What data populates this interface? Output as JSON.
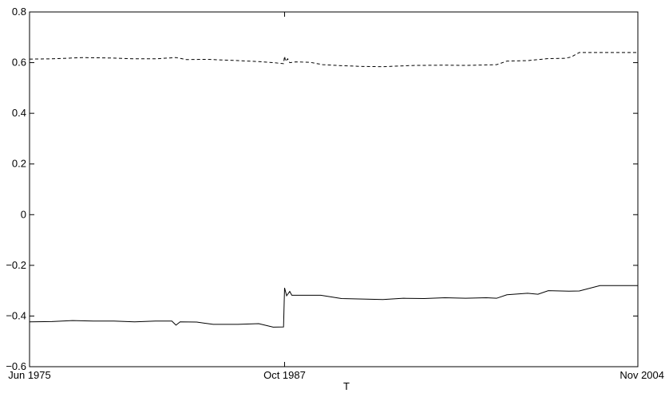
{
  "chart_data": {
    "type": "line",
    "title": "",
    "xlabel": "T",
    "ylabel": "",
    "ylim": [
      -0.6,
      0.8
    ],
    "yticks": [
      -0.6,
      -0.4,
      -0.2,
      0,
      0.2,
      0.4,
      0.6,
      0.8
    ],
    "ytick_labels": [
      "−0.6",
      "−0.4",
      "−0.2",
      "0",
      "0.2",
      "0.4",
      "0.6",
      "0.8"
    ],
    "xlim": [
      1975.42,
      2004.83
    ],
    "xticks": [
      1975.42,
      1987.75,
      2004.83
    ],
    "xtick_labels": [
      "Jun 1975",
      "Oct 1987",
      "Nov 2004"
    ],
    "grid": false,
    "series": [
      {
        "style": "dashed",
        "color": "#000000",
        "x": [
          1975.42,
          1976.5,
          1978,
          1979.5,
          1980.5,
          1981.5,
          1982.5,
          1983,
          1984,
          1985.5,
          1986.5,
          1987.2,
          1987.7,
          1987.75,
          1987.8,
          1987.9,
          1988.0,
          1988.3,
          1989,
          1989.6,
          1990.5,
          1991.5,
          1992.5,
          1994,
          1995.5,
          1996.5,
          1997.5,
          1998.0,
          1998.5,
          1999.5,
          2000.5,
          2001.3,
          2001.6,
          2002.0,
          2003,
          2004.83
        ],
        "y": [
          0.614,
          0.615,
          0.62,
          0.618,
          0.615,
          0.615,
          0.62,
          0.612,
          0.613,
          0.608,
          0.604,
          0.6,
          0.596,
          0.625,
          0.605,
          0.615,
          0.6,
          0.603,
          0.601,
          0.592,
          0.588,
          0.585,
          0.584,
          0.589,
          0.59,
          0.589,
          0.591,
          0.592,
          0.606,
          0.608,
          0.616,
          0.617,
          0.622,
          0.64,
          0.64,
          0.64
        ]
      },
      {
        "style": "solid",
        "color": "#000000",
        "x": [
          1975.42,
          1976.5,
          1977.5,
          1978.5,
          1979.5,
          1980.5,
          1981.5,
          1982.3,
          1982.5,
          1982.7,
          1983.5,
          1984.3,
          1985.5,
          1986.5,
          1987.2,
          1987.7,
          1987.75,
          1987.85,
          1988.0,
          1988.1,
          1988.3,
          1989.5,
          1990.5,
          1991.5,
          1992.5,
          1993.5,
          1994.5,
          1995.5,
          1996.5,
          1997.5,
          1998.0,
          1998.5,
          1999.5,
          2000.0,
          2000.5,
          2001.5,
          2002.0,
          2003,
          2004.83
        ],
        "y": [
          -0.423,
          -0.422,
          -0.418,
          -0.42,
          -0.42,
          -0.423,
          -0.42,
          -0.42,
          -0.436,
          -0.423,
          -0.424,
          -0.433,
          -0.433,
          -0.43,
          -0.444,
          -0.443,
          -0.289,
          -0.32,
          -0.303,
          -0.318,
          -0.318,
          -0.318,
          -0.331,
          -0.333,
          -0.335,
          -0.33,
          -0.331,
          -0.328,
          -0.33,
          -0.328,
          -0.33,
          -0.316,
          -0.31,
          -0.314,
          -0.3,
          -0.302,
          -0.301,
          -0.28,
          -0.28
        ]
      }
    ]
  }
}
